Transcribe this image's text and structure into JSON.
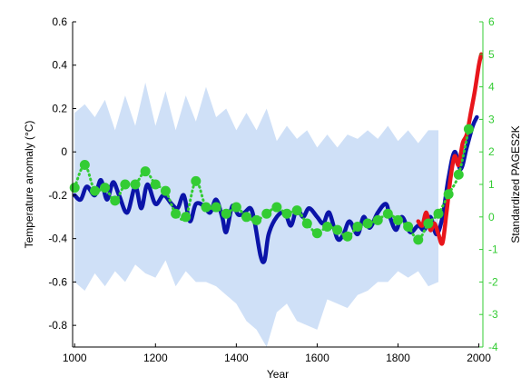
{
  "chart_data": {
    "type": "line",
    "title": "",
    "xlabel": "Year",
    "ylabel": "Temperature anomaly (°C)",
    "y2label": "Standardized PAGES2K",
    "xlim": [
      995,
      2010
    ],
    "ylim": [
      -0.9,
      0.6
    ],
    "y2lim": [
      -4,
      6
    ],
    "x_ticks": [
      1000,
      1200,
      1400,
      1600,
      1800,
      2000
    ],
    "y_ticks": [
      0.6,
      0.4,
      0.2,
      0,
      -0.2,
      -0.4,
      -0.6,
      -0.8
    ],
    "y_tick_labels": [
      "0.6",
      "0.4",
      "0.2",
      "0",
      "-0.2",
      "-0.4",
      "-0.6",
      "-0.8"
    ],
    "y2_ticks": [
      6,
      5,
      4,
      3,
      2,
      1,
      0,
      -1,
      -2,
      -3,
      -4
    ],
    "grid": false,
    "colors": {
      "uncertainty_band": "#cfe0f7",
      "reconstruction": "#0b14a8",
      "instrumental": "#e8151b",
      "pages2k": "#33cc33"
    },
    "uncertainty_band": {
      "x": [
        1000,
        1025,
        1050,
        1075,
        1100,
        1125,
        1150,
        1175,
        1200,
        1225,
        1250,
        1275,
        1300,
        1325,
        1350,
        1375,
        1400,
        1425,
        1450,
        1475,
        1500,
        1525,
        1550,
        1575,
        1600,
        1625,
        1650,
        1675,
        1700,
        1725,
        1750,
        1775,
        1800,
        1825,
        1850,
        1875,
        1900
      ],
      "upper": [
        0.18,
        0.22,
        0.16,
        0.24,
        0.1,
        0.26,
        0.12,
        0.32,
        0.12,
        0.28,
        0.1,
        0.26,
        0.14,
        0.3,
        0.16,
        0.2,
        0.1,
        0.18,
        0.1,
        0.2,
        0.05,
        0.12,
        0.06,
        0.1,
        0.02,
        0.08,
        0.02,
        0.08,
        0.06,
        0.1,
        0.06,
        0.12,
        0.05,
        0.1,
        0.04,
        0.1,
        0.1
      ],
      "lower": [
        -0.6,
        -0.64,
        -0.56,
        -0.62,
        -0.55,
        -0.6,
        -0.52,
        -0.56,
        -0.58,
        -0.5,
        -0.62,
        -0.55,
        -0.6,
        -0.6,
        -0.62,
        -0.66,
        -0.7,
        -0.78,
        -0.82,
        -0.9,
        -0.74,
        -0.7,
        -0.78,
        -0.8,
        -0.82,
        -0.68,
        -0.7,
        -0.72,
        -0.66,
        -0.64,
        -0.6,
        -0.6,
        -0.55,
        -0.58,
        -0.55,
        -0.62,
        -0.6
      ]
    },
    "series": [
      {
        "x": [
          1000,
          1015,
          1030,
          1050,
          1065,
          1080,
          1095,
          1110,
          1130,
          1150,
          1165,
          1180,
          1200,
          1220,
          1240,
          1255,
          1270,
          1285,
          1300,
          1320,
          1335,
          1350,
          1365,
          1375,
          1390,
          1405,
          1420,
          1435,
          1445,
          1460,
          1470,
          1480,
          1500,
          1520,
          1535,
          1550,
          1565,
          1580,
          1600,
          1615,
          1630,
          1650,
          1665,
          1680,
          1700,
          1715,
          1730,
          1750,
          1770,
          1780,
          1795,
          1810,
          1830,
          1850,
          1865,
          1880,
          1895,
          1910,
          1925,
          1940,
          1955,
          1970,
          1985,
          1995
        ],
        "values": [
          -0.2,
          -0.22,
          -0.16,
          -0.2,
          -0.13,
          -0.22,
          -0.14,
          -0.2,
          -0.28,
          -0.16,
          -0.26,
          -0.15,
          -0.24,
          -0.2,
          -0.24,
          -0.26,
          -0.2,
          -0.32,
          -0.24,
          -0.25,
          -0.28,
          -0.22,
          -0.3,
          -0.37,
          -0.25,
          -0.29,
          -0.28,
          -0.26,
          -0.32,
          -0.48,
          -0.5,
          -0.38,
          -0.3,
          -0.28,
          -0.34,
          -0.26,
          -0.3,
          -0.26,
          -0.3,
          -0.33,
          -0.28,
          -0.4,
          -0.38,
          -0.32,
          -0.38,
          -0.3,
          -0.35,
          -0.28,
          -0.24,
          -0.3,
          -0.36,
          -0.3,
          -0.37,
          -0.34,
          -0.36,
          -0.3,
          -0.38,
          -0.3,
          -0.12,
          0.0,
          -0.08,
          0.02,
          0.12,
          0.16
        ]
      },
      {
        "x": [
          1850,
          1860,
          1870,
          1880,
          1890,
          1900,
          1910,
          1920,
          1930,
          1940,
          1950,
          1960,
          1970,
          1980,
          1990,
          2000,
          2006
        ],
        "values": [
          -0.32,
          -0.34,
          -0.28,
          -0.36,
          -0.33,
          -0.38,
          -0.42,
          -0.28,
          -0.12,
          -0.02,
          -0.06,
          0.04,
          0.08,
          0.18,
          0.28,
          0.4,
          0.45
        ]
      },
      {
        "x": [
          1000,
          1025,
          1050,
          1075,
          1100,
          1125,
          1150,
          1175,
          1200,
          1225,
          1250,
          1275,
          1300,
          1325,
          1350,
          1375,
          1400,
          1425,
          1450,
          1475,
          1500,
          1525,
          1550,
          1575,
          1600,
          1625,
          1650,
          1675,
          1700,
          1725,
          1750,
          1775,
          1800,
          1825,
          1850,
          1875,
          1900,
          1925,
          1950,
          1975
        ],
        "values": [
          0.9,
          1.6,
          0.8,
          0.9,
          0.5,
          1.0,
          1.0,
          1.4,
          1.0,
          0.8,
          0.1,
          0.0,
          1.1,
          0.3,
          0.3,
          0.1,
          0.3,
          0.0,
          -0.1,
          0.1,
          0.3,
          0.1,
          0.2,
          -0.2,
          -0.5,
          -0.3,
          -0.4,
          -0.6,
          -0.3,
          -0.2,
          -0.1,
          0.1,
          -0.1,
          -0.3,
          -0.7,
          -0.2,
          0.1,
          0.7,
          1.3,
          2.7
        ]
      }
    ]
  }
}
